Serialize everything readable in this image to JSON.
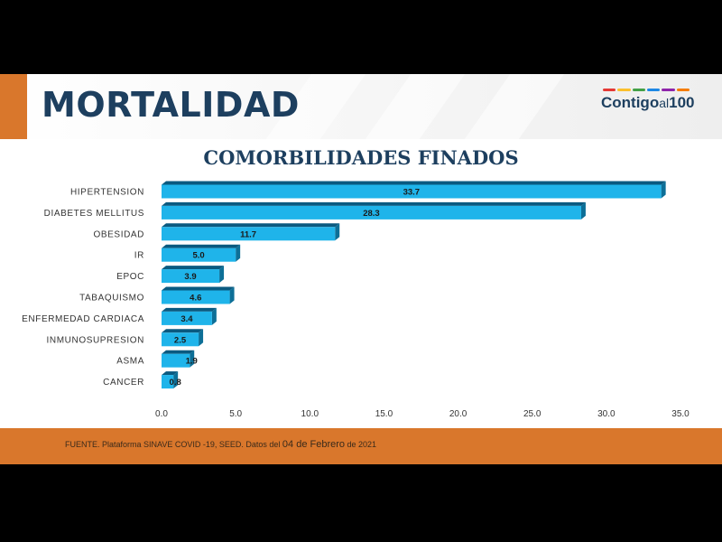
{
  "header": {
    "title": "MORTALIDAD",
    "logo_main": "Contigo",
    "logo_small": "al",
    "logo_num": "100",
    "logo_colors": [
      "#e53935",
      "#fbc02d",
      "#43a047",
      "#1e88e5",
      "#8e24aa",
      "#f57c00"
    ]
  },
  "chart_data": {
    "type": "bar",
    "orientation": "horizontal",
    "title": "COMORBILIDADES FINADOS",
    "categories": [
      "HIPERTENSION",
      "DIABETES MELLITUS",
      "OBESIDAD",
      "IR",
      "EPOC",
      "TABAQUISMO",
      "ENFERMEDAD CARDIACA",
      "INMUNOSUPRESION",
      "ASMA",
      "CANCER"
    ],
    "values": [
      33.7,
      28.3,
      11.7,
      5.0,
      3.9,
      4.6,
      3.4,
      2.5,
      1.9,
      0.8
    ],
    "value_labels": [
      "33.7",
      "28.3",
      "11.7",
      "5.0",
      "3.9",
      "4.6",
      "3.4",
      "2.5",
      "1.9",
      "0.8"
    ],
    "xlim": [
      0,
      35
    ],
    "xticks": [
      "0.0",
      "5.0",
      "10.0",
      "15.0",
      "20.0",
      "25.0",
      "30.0",
      "35.0"
    ],
    "grid": false,
    "bar_color": "#1fb4ea",
    "bar_side_color": "#0d6f97",
    "bar_top_color": "#0a5a80"
  },
  "footer": {
    "source_prefix": "FUENTE. Plataforma SINAVE COVID -19, SEED. Datos del ",
    "source_day": "04 de Febrero",
    "source_suffix": " de 2021"
  },
  "colors": {
    "accent": "#d9772c",
    "navy": "#1d3f5f"
  }
}
